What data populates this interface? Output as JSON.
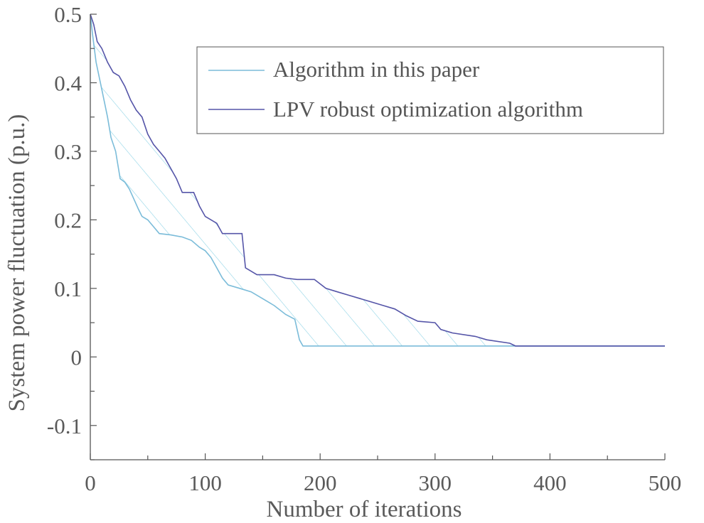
{
  "chart_data": {
    "type": "line",
    "xlabel": "Number of iterations",
    "ylabel": "System power fluctuation (p.u.)",
    "xlim": [
      0,
      500
    ],
    "ylim": [
      -0.15,
      0.5
    ],
    "xticks": [
      0,
      100,
      200,
      300,
      400,
      500
    ],
    "yticks": [
      0.5,
      0.4,
      0.3,
      0.2,
      0.1,
      0,
      -0.1
    ],
    "grid": false,
    "legend_position": "top-right",
    "shaded_between_series": true,
    "colors": {
      "series_1": "#7bbcd9",
      "series_2": "#5555a8",
      "fill_hatch": "#8fd3e6",
      "axis": "#555555"
    },
    "series": [
      {
        "name": "Algorithm in this paper",
        "points": [
          [
            0,
            0.5
          ],
          [
            2,
            0.47
          ],
          [
            5,
            0.43
          ],
          [
            10,
            0.39
          ],
          [
            15,
            0.35
          ],
          [
            18,
            0.32
          ],
          [
            22,
            0.3
          ],
          [
            26,
            0.26
          ],
          [
            30,
            0.255
          ],
          [
            34,
            0.245
          ],
          [
            38,
            0.23
          ],
          [
            42,
            0.215
          ],
          [
            45,
            0.205
          ],
          [
            50,
            0.2
          ],
          [
            55,
            0.19
          ],
          [
            60,
            0.18
          ],
          [
            70,
            0.178
          ],
          [
            80,
            0.175
          ],
          [
            88,
            0.17
          ],
          [
            95,
            0.16
          ],
          [
            100,
            0.155
          ],
          [
            105,
            0.145
          ],
          [
            110,
            0.13
          ],
          [
            115,
            0.115
          ],
          [
            120,
            0.105
          ],
          [
            130,
            0.1
          ],
          [
            140,
            0.095
          ],
          [
            150,
            0.085
          ],
          [
            160,
            0.075
          ],
          [
            170,
            0.062
          ],
          [
            178,
            0.055
          ],
          [
            182,
            0.025
          ],
          [
            185,
            0.016
          ],
          [
            200,
            0.016
          ],
          [
            300,
            0.016
          ],
          [
            400,
            0.016
          ],
          [
            500,
            0.016
          ]
        ]
      },
      {
        "name": "LPV robust optimization algorithm",
        "points": [
          [
            0,
            0.5
          ],
          [
            3,
            0.485
          ],
          [
            6,
            0.46
          ],
          [
            10,
            0.45
          ],
          [
            15,
            0.43
          ],
          [
            20,
            0.415
          ],
          [
            25,
            0.41
          ],
          [
            30,
            0.395
          ],
          [
            35,
            0.375
          ],
          [
            40,
            0.36
          ],
          [
            45,
            0.35
          ],
          [
            50,
            0.325
          ],
          [
            55,
            0.31
          ],
          [
            60,
            0.3
          ],
          [
            65,
            0.29
          ],
          [
            70,
            0.275
          ],
          [
            75,
            0.26
          ],
          [
            80,
            0.24
          ],
          [
            90,
            0.24
          ],
          [
            95,
            0.22
          ],
          [
            100,
            0.205
          ],
          [
            110,
            0.195
          ],
          [
            115,
            0.18
          ],
          [
            132,
            0.18
          ],
          [
            135,
            0.13
          ],
          [
            140,
            0.125
          ],
          [
            145,
            0.12
          ],
          [
            160,
            0.12
          ],
          [
            170,
            0.115
          ],
          [
            180,
            0.113
          ],
          [
            195,
            0.113
          ],
          [
            205,
            0.1
          ],
          [
            215,
            0.095
          ],
          [
            225,
            0.09
          ],
          [
            235,
            0.085
          ],
          [
            245,
            0.08
          ],
          [
            255,
            0.075
          ],
          [
            265,
            0.07
          ],
          [
            275,
            0.06
          ],
          [
            285,
            0.052
          ],
          [
            300,
            0.05
          ],
          [
            305,
            0.04
          ],
          [
            315,
            0.035
          ],
          [
            335,
            0.03
          ],
          [
            345,
            0.025
          ],
          [
            365,
            0.02
          ],
          [
            370,
            0.016
          ],
          [
            400,
            0.016
          ],
          [
            500,
            0.016
          ]
        ]
      }
    ]
  }
}
